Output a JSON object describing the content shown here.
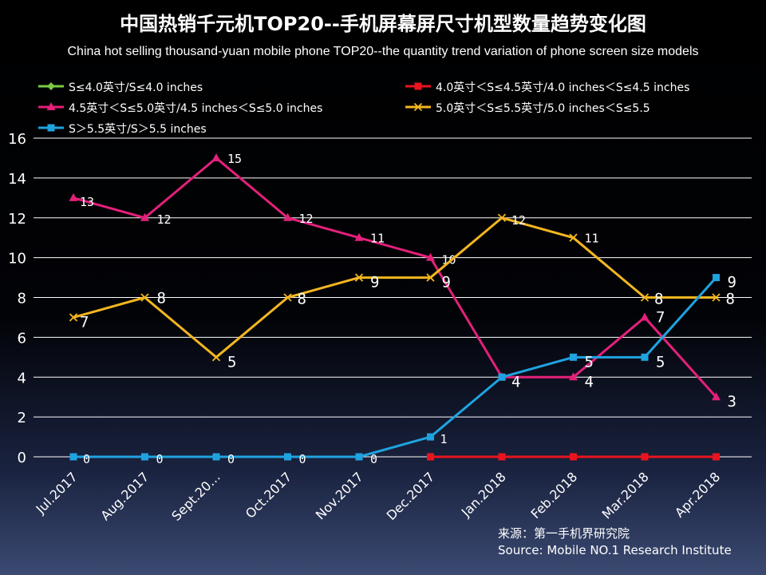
{
  "chart_data": {
    "type": "line",
    "title": "中国热销千元机TOP20--手机屏幕屏尺寸机型数量趋势变化图",
    "subtitle": "China hot selling thousand-yuan mobile phone TOP20--the quantity trend variation of phone screen size models",
    "categories": [
      "Jul.2017",
      "Aug.2017",
      "Sept.20…",
      "Oct.2017",
      "Nov.2017",
      "Dec.2017",
      "Jan.2018",
      "Feb.2018",
      "Mar.2018",
      "Apr.2018"
    ],
    "ylim": [
      0,
      16
    ],
    "yticks": [
      0,
      2,
      4,
      6,
      8,
      10,
      12,
      14,
      16
    ],
    "grid": true,
    "legend_position": "top",
    "series": [
      {
        "name": "S≤4.0英寸/S≤4.0 inches",
        "color": "#7ac943",
        "marker": "diamond",
        "values": [
          null,
          null,
          null,
          null,
          null,
          null,
          null,
          null,
          null,
          null
        ],
        "labels": [
          null,
          null,
          null,
          null,
          null,
          null,
          null,
          null,
          null,
          null
        ]
      },
      {
        "name": "4.0英寸＜S≤4.5英寸/4.0 inches＜S≤4.5 inches",
        "color": "#e8141e",
        "marker": "square",
        "values": [
          null,
          null,
          null,
          null,
          null,
          0,
          0,
          0,
          0,
          0
        ],
        "labels": [
          null,
          null,
          null,
          null,
          null,
          null,
          null,
          null,
          null,
          null
        ]
      },
      {
        "name": "4.5英寸＜S≤5.0英寸/4.5 inches＜S≤5.0 inches",
        "color": "#e3207a",
        "marker": "triangle",
        "values": [
          13,
          12,
          15,
          12,
          11,
          10,
          4,
          4,
          7,
          3
        ],
        "labels": [
          "13",
          "12",
          "15",
          "12",
          "11",
          "10",
          "4",
          "4",
          "7",
          "3"
        ]
      },
      {
        "name": "5.0英寸＜S≤5.5英寸/5.0 inches＜S≤5.5",
        "color": "#f3b61f",
        "marker": "x",
        "values": [
          7,
          8,
          5,
          8,
          9,
          9,
          12,
          11,
          8,
          8
        ],
        "labels": [
          "7",
          "8",
          "5",
          "8",
          "9",
          "9",
          "12",
          "11",
          "8",
          "8"
        ]
      },
      {
        "name": "S＞5.5英寸/S＞5.5 inches",
        "color": "#1fa3e0",
        "marker": "square",
        "values": [
          0,
          0,
          0,
          0,
          0,
          1,
          4,
          5,
          5,
          9
        ],
        "labels": [
          "0",
          "0",
          "0",
          "0",
          "0",
          "1",
          null,
          "5",
          "5",
          "9"
        ]
      }
    ],
    "source_cn": "来源：第一手机界研究院",
    "source_en": "Source: Mobile NO.1 Research Institute"
  }
}
